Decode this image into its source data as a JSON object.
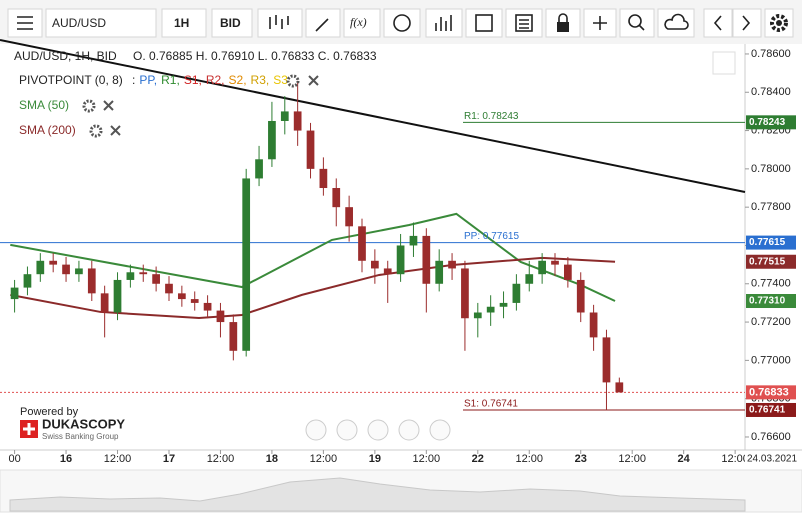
{
  "toolbar": {
    "symbol": "AUD/USD",
    "timeframe": "1H",
    "price_type": "BID",
    "function": "f(x)"
  },
  "legend": {
    "header": "AUD/USD, 1H, BID",
    "ohlc": "O. 0.76885 H. 0.76910 L. 0.76833 C. 0.76833",
    "pivot": "PIVOTPOINT (0, 8)",
    "pivot_prefix": ":",
    "pivot_levels": [
      {
        "text": "PP,",
        "color": "#2a6fd0"
      },
      {
        "text": "R1,",
        "color": "#2e8b2e"
      },
      {
        "text": "S1,",
        "color": "#d02020"
      },
      {
        "text": "R2,",
        "color": "#c83030"
      },
      {
        "text": "S2,",
        "color": "#e08a00"
      },
      {
        "text": "R3,",
        "color": "#d0a000"
      },
      {
        "text": "S3",
        "color": "#e8c400"
      }
    ]
  },
  "branding": {
    "powered": "Powered by",
    "name": "DUKASCOPY",
    "tagline": "Swiss Banking Group"
  },
  "chart_data": {
    "type": "candlestick",
    "up_color": "#2e7d32",
    "down_color": "#9b2c2c",
    "xlim": [
      -15.4,
      158.3
    ],
    "ylim": [
      0.76532,
      0.78652
    ],
    "xticks": [
      {
        "value": -12,
        "label": "00"
      },
      {
        "value": 0,
        "label": "16"
      },
      {
        "value": 12,
        "label": "12:00"
      },
      {
        "value": 24,
        "label": "17"
      },
      {
        "value": 36,
        "label": "12:00"
      },
      {
        "value": 48,
        "label": "18"
      },
      {
        "value": 60,
        "label": "12:00"
      },
      {
        "value": 72,
        "label": "19"
      },
      {
        "value": 84,
        "label": "12:00"
      },
      {
        "value": 96,
        "label": "22"
      },
      {
        "value": 108,
        "label": "12:00"
      },
      {
        "value": 120,
        "label": "23"
      },
      {
        "value": 132,
        "label": "12:00"
      },
      {
        "value": 144,
        "label": "24"
      },
      {
        "value": 156,
        "label": "12:00"
      }
    ],
    "date_label": "24.03.2021",
    "yticks": [
      {
        "value": 0.786,
        "label": "0.78600"
      },
      {
        "value": 0.784,
        "label": "0.78400"
      },
      {
        "value": 0.782,
        "label": "0.78200"
      },
      {
        "value": 0.78,
        "label": "0.78000"
      },
      {
        "value": 0.778,
        "label": "0.77800"
      },
      {
        "value": 0.776,
        "label": "0.77600"
      },
      {
        "value": 0.774,
        "label": "0.77400"
      },
      {
        "value": 0.772,
        "label": "0.77200"
      },
      {
        "value": 0.77,
        "label": "0.77000"
      },
      {
        "value": 0.768,
        "label": "0.76800"
      },
      {
        "value": 0.766,
        "label": "0.76600"
      }
    ],
    "x": [
      -12,
      -9,
      -6,
      -3,
      0,
      3,
      6,
      9,
      12,
      15,
      18,
      21,
      24,
      27,
      30,
      33,
      36,
      39,
      42,
      45,
      48,
      51,
      54,
      57,
      60,
      63,
      66,
      69,
      72,
      75,
      78,
      81,
      84,
      87,
      90,
      93,
      96,
      99,
      102,
      105,
      108,
      111,
      114,
      117,
      120,
      123,
      126,
      129
    ],
    "open": [
      0.7732,
      0.7738,
      0.7745,
      0.7752,
      0.775,
      0.7745,
      0.7748,
      0.7735,
      0.7725,
      0.7742,
      0.7746,
      0.7745,
      0.774,
      0.7735,
      0.7732,
      0.773,
      0.7726,
      0.772,
      0.7705,
      0.7795,
      0.7805,
      0.7825,
      0.783,
      0.782,
      0.78,
      0.779,
      0.778,
      0.777,
      0.7752,
      0.7748,
      0.7745,
      0.776,
      0.7765,
      0.774,
      0.7752,
      0.7748,
      0.7722,
      0.7725,
      0.7728,
      0.773,
      0.774,
      0.7745,
      0.7752,
      0.775,
      0.7742,
      0.7725,
      0.7712,
      0.76885
    ],
    "high": [
      0.7742,
      0.7749,
      0.7756,
      0.7756,
      0.7754,
      0.7752,
      0.7752,
      0.7739,
      0.7746,
      0.775,
      0.775,
      0.7749,
      0.7744,
      0.7739,
      0.7736,
      0.7734,
      0.773,
      0.7724,
      0.78,
      0.7812,
      0.7835,
      0.7838,
      0.7846,
      0.7824,
      0.7806,
      0.7795,
      0.7786,
      0.7774,
      0.7758,
      0.7752,
      0.7766,
      0.7772,
      0.7769,
      0.7758,
      0.7756,
      0.7752,
      0.773,
      0.7734,
      0.7736,
      0.7745,
      0.7752,
      0.7756,
      0.7756,
      0.7754,
      0.7746,
      0.7729,
      0.7716,
      0.7691
    ],
    "low": [
      0.7725,
      0.7734,
      0.7741,
      0.7746,
      0.7741,
      0.7741,
      0.7731,
      0.7712,
      0.7721,
      0.7738,
      0.7741,
      0.7736,
      0.7731,
      0.7728,
      0.7726,
      0.7722,
      0.7712,
      0.77,
      0.7702,
      0.7791,
      0.7801,
      0.7818,
      0.7812,
      0.7795,
      0.7786,
      0.777,
      0.7762,
      0.7746,
      0.774,
      0.773,
      0.7741,
      0.7754,
      0.7725,
      0.7736,
      0.7742,
      0.7705,
      0.7712,
      0.7718,
      0.7722,
      0.7726,
      0.7736,
      0.774,
      0.7744,
      0.7738,
      0.772,
      0.7705,
      0.7674,
      0.76833
    ],
    "close": [
      0.7738,
      0.7745,
      0.7752,
      0.775,
      0.7745,
      0.7748,
      0.7735,
      0.7725,
      0.7742,
      0.7746,
      0.7745,
      0.774,
      0.7735,
      0.7732,
      0.773,
      0.7726,
      0.772,
      0.7705,
      0.7795,
      0.7805,
      0.7825,
      0.783,
      0.782,
      0.78,
      0.779,
      0.778,
      0.777,
      0.7752,
      0.7748,
      0.7745,
      0.776,
      0.7765,
      0.774,
      0.7752,
      0.7748,
      0.7722,
      0.7725,
      0.7728,
      0.773,
      0.774,
      0.7745,
      0.7752,
      0.775,
      0.7742,
      0.7725,
      0.7712,
      0.76885,
      0.76833
    ],
    "series": [
      {
        "name": "SMA (50)",
        "color": "#3a8a3a",
        "x": [
          -13,
          41,
          62,
          80,
          91,
          106,
          120,
          128
        ],
        "values": [
          0.77603,
          0.77383,
          0.77629,
          0.77707,
          0.77765,
          0.77514,
          0.77394,
          0.7731
        ],
        "axis_label": "0.77310"
      },
      {
        "name": "SMA (200)",
        "color": "#8b2a2a",
        "x": [
          -13,
          8,
          31,
          41,
          55,
          73,
          90,
          111,
          128
        ],
        "values": [
          0.77342,
          0.77253,
          0.77221,
          0.77237,
          0.77342,
          0.77446,
          0.77498,
          0.77535,
          0.77515
        ],
        "axis_label": "0.77515"
      }
    ],
    "levels": [
      {
        "label": "R1: 0.78243",
        "value": 0.78243,
        "axis_label": "0.78243",
        "color": "#2e7d32"
      },
      {
        "label": "PP: 0.77615",
        "value": 0.77615,
        "axis_label": "0.77615",
        "color": "#2a6fd0"
      },
      {
        "label": "S1: 0.76741",
        "value": 0.76741,
        "axis_label": "0.76741",
        "color": "#8b1a1a"
      }
    ],
    "price": {
      "value": 0.76833,
      "axis_label": "0.76833",
      "color": "#e05050"
    },
    "trendline": {
      "x": [
        -15.4,
        158.3
      ],
      "values": [
        0.78673,
        0.77879
      ]
    }
  }
}
